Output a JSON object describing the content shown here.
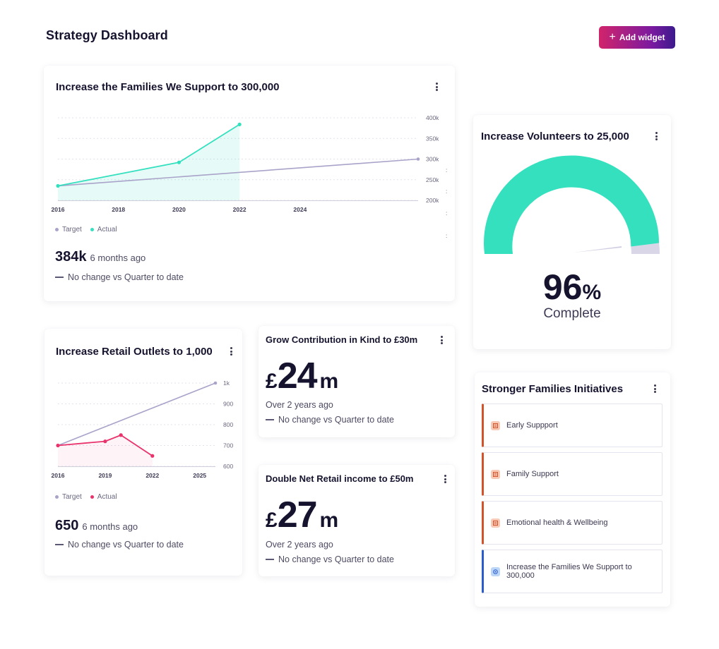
{
  "page": {
    "title": "Strategy Dashboard",
    "add_widget_label": "Add widget"
  },
  "colors": {
    "target": "#a9a3c9",
    "actual_teal": "#35e0bf",
    "actual_pink": "#e8336c",
    "gauge": "#35e0bf",
    "brand_gradient_start": "#d1246b",
    "brand_gradient_end": "#3b1a8c"
  },
  "families": {
    "title": "Increase the Families We Support to 300,000",
    "legend": {
      "target": "Target",
      "actual": "Actual"
    },
    "stat_value": "384k",
    "stat_ago": "6 months ago",
    "change": "No change vs Quarter to date",
    "chart_data": {
      "type": "line",
      "x_ticks": [
        "2016",
        "2018",
        "2020",
        "2022",
        "2024"
      ],
      "y_ticks": [
        "400k",
        "350k",
        "300k",
        "250k",
        "200k"
      ],
      "ylim": [
        200000,
        400000
      ],
      "xlim": [
        2016,
        2027.9
      ],
      "series": [
        {
          "name": "Target",
          "points": [
            [
              2016,
              235000
            ],
            [
              2027.9,
              300000
            ]
          ]
        },
        {
          "name": "Actual",
          "points": [
            [
              2016,
              235000
            ],
            [
              2020,
              292000
            ],
            [
              2022,
              384000
            ]
          ]
        }
      ]
    }
  },
  "retail": {
    "title": "Increase Retail Outlets to 1,000",
    "legend": {
      "target": "Target",
      "actual": "Actual"
    },
    "stat_value": "650",
    "stat_ago": "6 months ago",
    "change": "No change vs Quarter to date",
    "chart_data": {
      "type": "line",
      "x_ticks": [
        "2016",
        "2019",
        "2022",
        "2025"
      ],
      "y_ticks": [
        "1k",
        "900",
        "800",
        "700",
        "600"
      ],
      "ylim": [
        600,
        1000
      ],
      "xlim": [
        2016,
        2026
      ],
      "series": [
        {
          "name": "Target",
          "points": [
            [
              2016,
              700
            ],
            [
              2026,
              1000
            ]
          ]
        },
        {
          "name": "Actual",
          "points": [
            [
              2016,
              700
            ],
            [
              2019,
              720
            ],
            [
              2020,
              750
            ],
            [
              2022,
              650
            ]
          ]
        }
      ]
    }
  },
  "contribution": {
    "title": "Grow Contribution in Kind to £30m",
    "currency": "£",
    "value": "24",
    "unit": "m",
    "sub": "Over 2 years ago",
    "change": "No change vs Quarter to date"
  },
  "net_retail": {
    "title": "Double Net Retail income to £50m",
    "currency": "£",
    "value": "27",
    "unit": "m",
    "sub": "Over 2 years ago",
    "change": "No change vs Quarter to date"
  },
  "volunteers": {
    "title": "Increase Volunteers to 25,000",
    "percent_value": "96",
    "percent_sign": "%",
    "label": "Complete",
    "progress": 0.96
  },
  "initiatives": {
    "title": "Stronger Families Initiatives",
    "items": [
      {
        "label": "Early Suppport",
        "icon": "document-icon"
      },
      {
        "label": "Family Support",
        "icon": "document-icon"
      },
      {
        "label": "Emotional health & Wellbeing",
        "icon": "document-icon"
      },
      {
        "label": "Increase the Families We Support to 300,000",
        "icon": "target-icon"
      }
    ]
  }
}
